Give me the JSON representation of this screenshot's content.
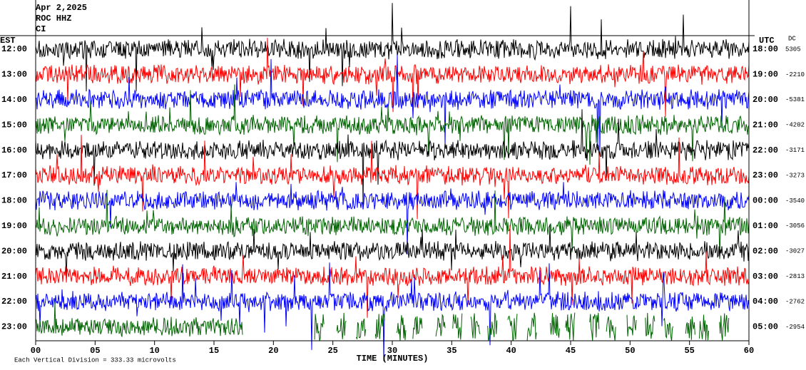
{
  "header": {
    "date": "Apr 2,2025",
    "station": "ROC HHZ",
    "network": "CI"
  },
  "left_axis": {
    "label": "EST",
    "times": [
      "12:00",
      "13:00",
      "14:00",
      "15:00",
      "16:00",
      "17:00",
      "18:00",
      "19:00",
      "20:00",
      "21:00",
      "22:00",
      "23:00"
    ]
  },
  "right_axis": {
    "label": "UTC",
    "dc_label": "DC",
    "times": [
      "18:00",
      "19:00",
      "20:00",
      "21:00",
      "22:00",
      "23:00",
      "00:00",
      "01:00",
      "02:00",
      "03:00",
      "04:00",
      "05:00"
    ],
    "dc": [
      "5305",
      "-2210",
      "-5381",
      "-4202",
      "-3171",
      "-3273",
      "-3540",
      "-3056",
      "-3027",
      "-2813",
      "-2762",
      "-2954"
    ]
  },
  "x_axis": {
    "label": "TIME (MINUTES)",
    "ticks": [
      "00",
      "05",
      "10",
      "15",
      "20",
      "25",
      "30",
      "35",
      "40",
      "45",
      "50",
      "55",
      "60"
    ]
  },
  "footer": {
    "scale_note": "Each Vertical Division =  333.33 microvolts"
  }
}
